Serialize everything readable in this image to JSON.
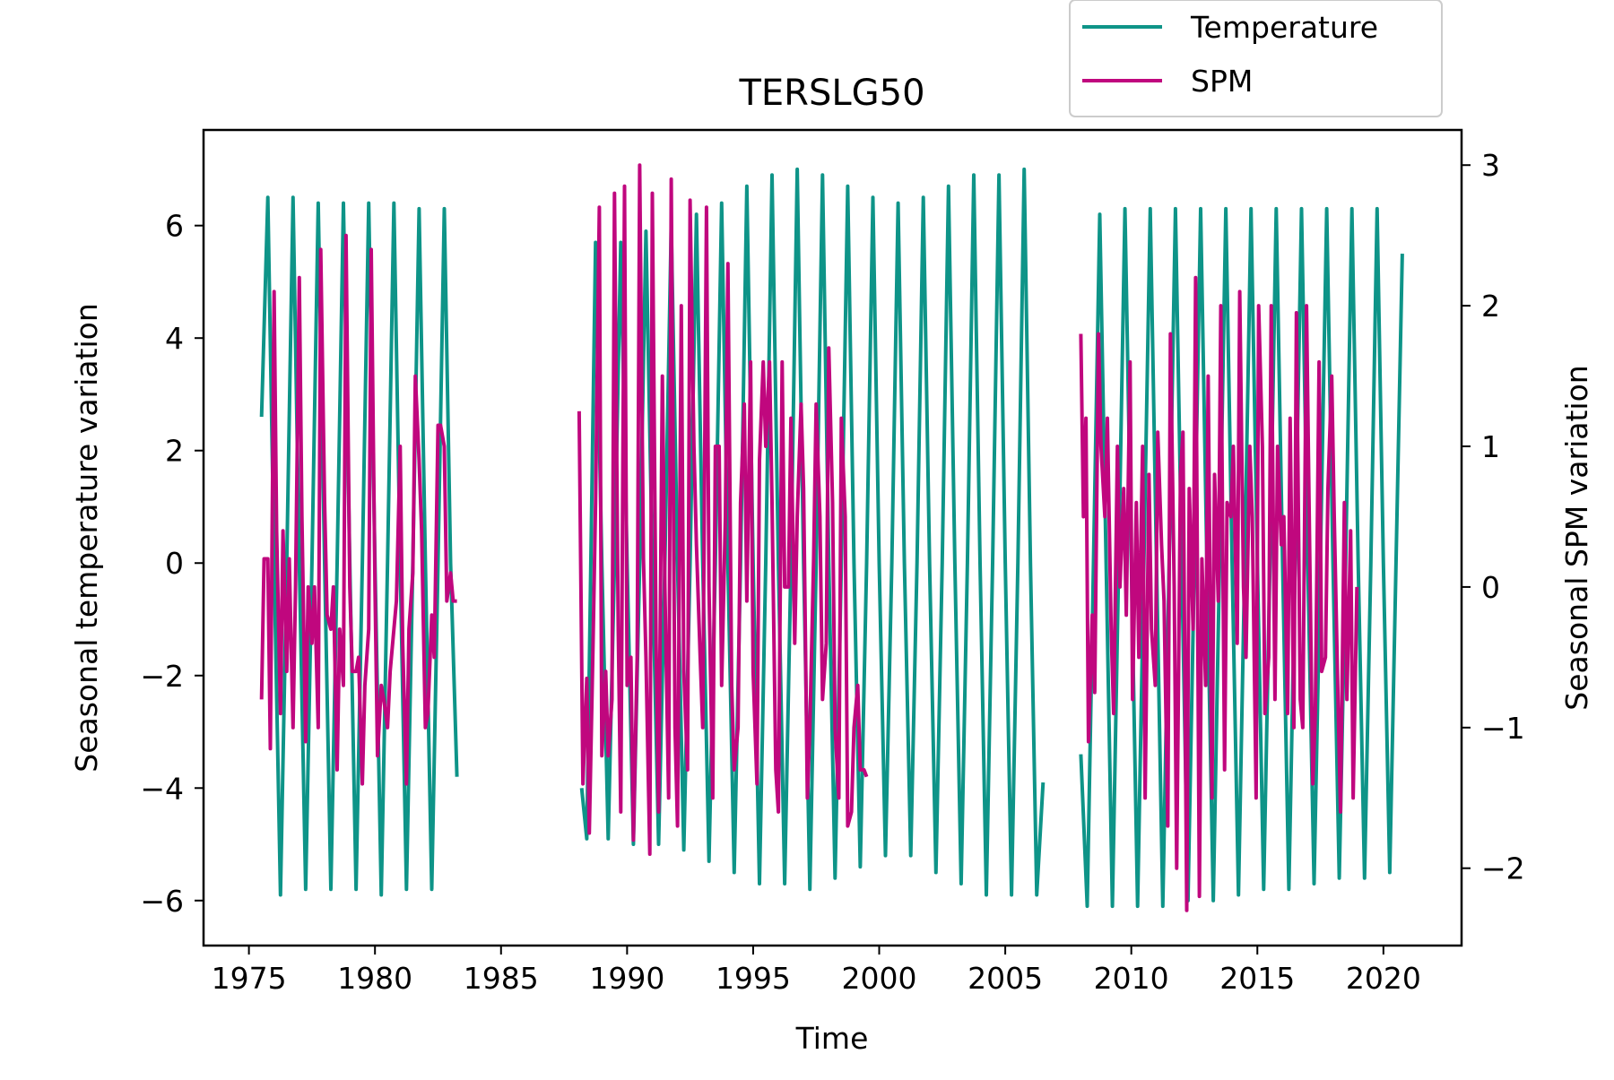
{
  "chart_data": {
    "type": "line",
    "title": "TERSLG50",
    "xlabel": "Time",
    "ylabel": "Seasonal temperature variation",
    "y2label": "Seasonal SPM variation",
    "xlim": [
      1973.2,
      2023.1
    ],
    "ylim": [
      -6.8,
      7.7
    ],
    "y2lim": [
      -2.55,
      3.25
    ],
    "x_ticks": [
      1975,
      1980,
      1985,
      1990,
      1995,
      2000,
      2005,
      2010,
      2015,
      2020
    ],
    "y_ticks": [
      -6,
      -4,
      -2,
      0,
      2,
      4,
      6
    ],
    "y2_ticks": [
      -2,
      -1,
      0,
      1,
      2,
      3
    ],
    "legend_position": "upper-right, above plot",
    "grid": false,
    "series": [
      {
        "name": "Temperature",
        "axis": "left",
        "color": "#0e9488",
        "segments": [
          {
            "x": [
              1975.5,
              1975.75,
              1976.0,
              1976.25,
              1976.5,
              1976.75,
              1977.0,
              1977.25,
              1977.5,
              1977.75,
              1978.0,
              1978.25,
              1978.5,
              1978.75,
              1979.0,
              1979.25,
              1979.5,
              1979.75,
              1980.0,
              1980.25,
              1980.5,
              1980.75,
              1981.0,
              1981.25,
              1981.5,
              1981.75,
              1982.0,
              1982.25,
              1982.5,
              1982.75,
              1983.0,
              1983.25
            ],
            "y": [
              2.6,
              6.5,
              0.0,
              -5.9,
              0.0,
              6.5,
              0.0,
              -5.8,
              0.0,
              6.4,
              0.0,
              -5.8,
              0.0,
              6.4,
              0.0,
              -5.8,
              0.0,
              6.4,
              0.0,
              -5.9,
              0.0,
              6.4,
              0.0,
              -5.8,
              0.0,
              6.3,
              0.0,
              -5.8,
              0.0,
              6.3,
              0.0,
              -3.8
            ]
          },
          {
            "x": [
              1988.2,
              1988.4,
              1988.75,
              1989.0,
              1989.25,
              1989.5,
              1989.75,
              1990.0,
              1990.25,
              1990.5,
              1990.75,
              1991.0,
              1991.25,
              1991.5,
              1991.75,
              1992.0,
              1992.25,
              1992.5,
              1992.75,
              1993.0,
              1993.25,
              1993.5,
              1993.75,
              1994.0,
              1994.25,
              1994.5,
              1994.75,
              1995.0,
              1995.25,
              1995.5,
              1995.75,
              1996.0,
              1996.25,
              1996.5,
              1996.75,
              1997.0,
              1997.25,
              1997.5,
              1997.75,
              1998.0,
              1998.25,
              1998.5,
              1998.75,
              1999.0,
              1999.25,
              1999.5,
              1999.75,
              2000.0,
              2000.25,
              2000.5,
              2000.75,
              2001.0,
              2001.25,
              2001.5,
              2001.75,
              2002.0,
              2002.25,
              2002.5,
              2002.75,
              2003.0,
              2003.25,
              2003.5,
              2003.75,
              2004.0,
              2004.25,
              2004.5,
              2004.75,
              2005.0,
              2005.25,
              2005.5,
              2005.75,
              2006.0,
              2006.25,
              2006.5
            ],
            "y": [
              -4.0,
              -4.9,
              5.7,
              0.0,
              -4.9,
              0.0,
              5.7,
              0.0,
              -5.0,
              0.0,
              5.9,
              0.0,
              -5.0,
              0.0,
              6.0,
              0.0,
              -5.1,
              0.0,
              6.2,
              0.0,
              -5.3,
              0.0,
              6.4,
              0.0,
              -5.5,
              0.0,
              6.7,
              0.0,
              -5.7,
              0.0,
              6.9,
              0.0,
              -5.7,
              0.0,
              7.0,
              0.0,
              -5.8,
              0.0,
              6.9,
              0.0,
              -5.6,
              0.0,
              6.7,
              0.0,
              -5.4,
              0.0,
              6.5,
              0.0,
              -5.2,
              0.0,
              6.4,
              0.0,
              -5.2,
              0.0,
              6.5,
              0.0,
              -5.5,
              0.0,
              6.7,
              0.0,
              -5.7,
              0.0,
              6.9,
              0.0,
              -5.9,
              0.0,
              6.9,
              0.0,
              -5.9,
              0.0,
              7.0,
              0.0,
              -5.9,
              -3.9
            ]
          },
          {
            "x": [
              2008.0,
              2008.25,
              2008.5,
              2008.75,
              2009.0,
              2009.25,
              2009.5,
              2009.75,
              2010.0,
              2010.25,
              2010.5,
              2010.75,
              2011.0,
              2011.25,
              2011.5,
              2011.75,
              2012.0,
              2012.25,
              2012.5,
              2012.75,
              2013.0,
              2013.25,
              2013.5,
              2013.75,
              2014.0,
              2014.25,
              2014.5,
              2014.75,
              2015.0,
              2015.25,
              2015.5,
              2015.75,
              2016.0,
              2016.25,
              2016.5,
              2016.75,
              2017.0,
              2017.25,
              2017.5,
              2017.75,
              2018.0,
              2018.25,
              2018.5,
              2018.75,
              2019.0,
              2019.25,
              2019.5,
              2019.75,
              2020.0,
              2020.25,
              2020.5,
              2020.75
            ],
            "y": [
              -3.4,
              -6.1,
              0.0,
              6.2,
              0.0,
              -6.1,
              0.0,
              6.3,
              0.0,
              -6.1,
              0.0,
              6.3,
              0.0,
              -6.1,
              0.0,
              6.3,
              0.0,
              -6.0,
              0.0,
              6.3,
              0.0,
              -6.0,
              0.0,
              6.3,
              0.0,
              -5.9,
              0.0,
              6.3,
              0.0,
              -5.8,
              0.0,
              6.3,
              0.0,
              -5.8,
              0.0,
              6.3,
              0.0,
              -5.7,
              0.0,
              6.3,
              0.0,
              -5.6,
              0.0,
              6.3,
              0.0,
              -5.6,
              0.0,
              6.3,
              0.0,
              -5.5,
              0.0,
              5.5
            ]
          }
        ]
      },
      {
        "name": "SPM",
        "axis": "right",
        "color": "#c0077e",
        "segments": [
          {
            "x": [
              1975.5,
              1975.6,
              1975.75,
              1975.85,
              1976.0,
              1976.1,
              1976.25,
              1976.35,
              1976.5,
              1976.6,
              1976.75,
              1976.85,
              1977.0,
              1977.1,
              1977.25,
              1977.35,
              1977.5,
              1977.6,
              1977.75,
              1977.85,
              1978.0,
              1978.1,
              1978.25,
              1978.35,
              1978.5,
              1978.6,
              1978.75,
              1978.85,
              1979.0,
              1979.1,
              1979.25,
              1979.35,
              1979.5,
              1979.6,
              1979.75,
              1979.85,
              1980.0,
              1980.1,
              1980.25,
              1980.35,
              1980.5,
              1980.6,
              1980.75,
              1980.85,
              1981.0,
              1981.1,
              1981.25,
              1981.35,
              1981.5,
              1981.6,
              1981.75,
              1981.85,
              1982.0,
              1982.1,
              1982.25,
              1982.35,
              1982.5,
              1982.6,
              1982.75,
              1982.85,
              1983.0,
              1983.1,
              1983.25
            ],
            "y": [
              -0.8,
              0.2,
              0.2,
              -1.15,
              2.1,
              0.4,
              -0.9,
              0.4,
              -0.6,
              0.2,
              -1.0,
              0.0,
              2.2,
              0.5,
              -1.1,
              0.0,
              -0.4,
              0.0,
              -1.0,
              2.4,
              0.6,
              -0.2,
              -0.3,
              0.0,
              -1.3,
              -0.3,
              -0.7,
              2.5,
              0.0,
              -0.6,
              -0.6,
              -0.5,
              -1.4,
              -0.7,
              -0.3,
              2.4,
              0.0,
              -1.2,
              -0.7,
              -0.8,
              -1.0,
              -0.6,
              -0.3,
              -0.1,
              1.0,
              -0.4,
              -1.4,
              -0.3,
              0.1,
              1.5,
              0.9,
              0.4,
              -1.0,
              -0.9,
              -0.2,
              -0.5,
              1.15,
              1.15,
              1.0,
              -0.1,
              0.1,
              -0.1,
              -0.1
            ]
          },
          {
            "x": [
              1988.1,
              1988.25,
              1988.4,
              1988.5,
              1988.65,
              1988.75,
              1988.9,
              1989.0,
              1989.15,
              1989.25,
              1989.4,
              1989.5,
              1989.65,
              1989.75,
              1989.9,
              1990.0,
              1990.15,
              1990.25,
              1990.4,
              1990.5,
              1990.65,
              1990.75,
              1990.9,
              1991.0,
              1991.15,
              1991.25,
              1991.4,
              1991.5,
              1991.65,
              1991.75,
              1991.9,
              1992.0,
              1992.15,
              1992.25,
              1992.4,
              1992.5,
              1992.65,
              1992.75,
              1992.9,
              1993.0,
              1993.15,
              1993.25,
              1993.4,
              1993.5,
              1993.65,
              1993.75,
              1993.9,
              1994.0,
              1994.15,
              1994.25,
              1994.4,
              1994.5,
              1994.65,
              1994.75,
              1994.9,
              1995.0,
              1995.15,
              1995.25,
              1995.4,
              1995.5,
              1995.65,
              1995.75,
              1995.9,
              1996.0,
              1996.15,
              1996.25,
              1996.4,
              1996.5,
              1996.65,
              1996.75,
              1996.9,
              1997.0,
              1997.15,
              1997.25,
              1997.4,
              1997.5,
              1997.65,
              1997.75,
              1997.9,
              1998.0,
              1998.15,
              1998.25,
              1998.4,
              1998.5,
              1998.65,
              1998.75,
              1998.9,
              1999.0,
              1999.15,
              1999.25,
              1999.4,
              1999.5
            ],
            "y": [
              1.25,
              -1.4,
              -0.65,
              -1.75,
              -0.4,
              0.6,
              2.7,
              -1.2,
              -0.6,
              -1.2,
              -0.8,
              2.8,
              -0.3,
              -1.6,
              2.85,
              -0.7,
              -0.5,
              -1.8,
              -0.5,
              3.0,
              0.2,
              -0.5,
              -1.9,
              2.8,
              -0.4,
              -1.6,
              1.5,
              0.0,
              -1.5,
              2.9,
              -1.0,
              -1.7,
              2.0,
              -0.6,
              -1.3,
              2.75,
              1.0,
              0.3,
              -0.5,
              -1.0,
              2.7,
              0.0,
              -1.5,
              1.0,
              1.0,
              -0.7,
              0.5,
              2.3,
              -0.7,
              -1.3,
              -1.0,
              0.6,
              1.3,
              -0.1,
              1.6,
              -0.6,
              -1.4,
              0.9,
              1.6,
              1.0,
              1.6,
              0.6,
              -1.3,
              -1.6,
              1.6,
              0.0,
              0.0,
              1.2,
              -0.4,
              0.5,
              1.3,
              0.7,
              -1.5,
              -1.0,
              0.2,
              1.3,
              0.5,
              -0.8,
              -0.4,
              1.7,
              0.6,
              -1.0,
              -1.5,
              1.2,
              0.5,
              -1.7,
              -1.6,
              -1.0,
              -0.7,
              -1.3,
              -1.3,
              -1.35
            ]
          },
          {
            "x": [
              2008.0,
              2008.1,
              2008.2,
              2008.3,
              2008.45,
              2008.55,
              2008.7,
              2008.8,
              2008.95,
              2009.05,
              2009.2,
              2009.3,
              2009.45,
              2009.55,
              2009.7,
              2009.8,
              2009.95,
              2010.05,
              2010.2,
              2010.3,
              2010.45,
              2010.55,
              2010.7,
              2010.8,
              2010.95,
              2011.05,
              2011.2,
              2011.3,
              2011.45,
              2011.55,
              2011.7,
              2011.8,
              2011.95,
              2012.05,
              2012.2,
              2012.3,
              2012.45,
              2012.55,
              2012.7,
              2012.8,
              2012.95,
              2013.05,
              2013.2,
              2013.3,
              2013.45,
              2013.55,
              2013.7,
              2013.8,
              2013.95,
              2014.05,
              2014.2,
              2014.3,
              2014.45,
              2014.55,
              2014.7,
              2014.8,
              2014.95,
              2015.05,
              2015.2,
              2015.3,
              2015.45,
              2015.55,
              2015.7,
              2015.8,
              2015.95,
              2016.05,
              2016.2,
              2016.3,
              2016.45,
              2016.55,
              2016.7,
              2016.8,
              2016.95,
              2017.05,
              2017.2,
              2017.3,
              2017.45,
              2017.55,
              2017.7,
              2017.8,
              2017.95,
              2018.05,
              2018.2,
              2018.3,
              2018.45,
              2018.55,
              2018.7,
              2018.8,
              2018.95
            ],
            "y": [
              1.8,
              0.5,
              1.2,
              -1.1,
              -0.2,
              -0.75,
              1.8,
              1.0,
              0.5,
              1.2,
              -0.3,
              -0.9,
              1.0,
              0.0,
              0.7,
              -0.2,
              1.6,
              -0.8,
              0.6,
              -0.5,
              1.0,
              -1.5,
              0.8,
              -0.3,
              -0.7,
              1.1,
              0.3,
              -0.1,
              -1.7,
              1.8,
              0.0,
              -2.0,
              0.8,
              1.1,
              -2.3,
              0.7,
              -0.3,
              2.2,
              -2.2,
              0.2,
              -0.7,
              1.5,
              -1.5,
              0.8,
              -0.1,
              2.0,
              -1.3,
              0.6,
              0.5,
              1.0,
              -0.4,
              2.1,
              0.0,
              -0.5,
              1.0,
              0.5,
              -1.5,
              2.0,
              1.0,
              -0.9,
              -0.5,
              2.0,
              -0.8,
              1.0,
              0.3,
              0.5,
              -0.9,
              1.2,
              -1.0,
              1.95,
              -0.8,
              -1.0,
              2.0,
              0.6,
              -1.4,
              -0.9,
              1.6,
              -0.6,
              -0.5,
              0.7,
              1.5,
              0.5,
              -0.8,
              -1.6,
              0.6,
              -0.8,
              0.4,
              -1.5,
              0.0
            ]
          }
        ]
      }
    ]
  }
}
